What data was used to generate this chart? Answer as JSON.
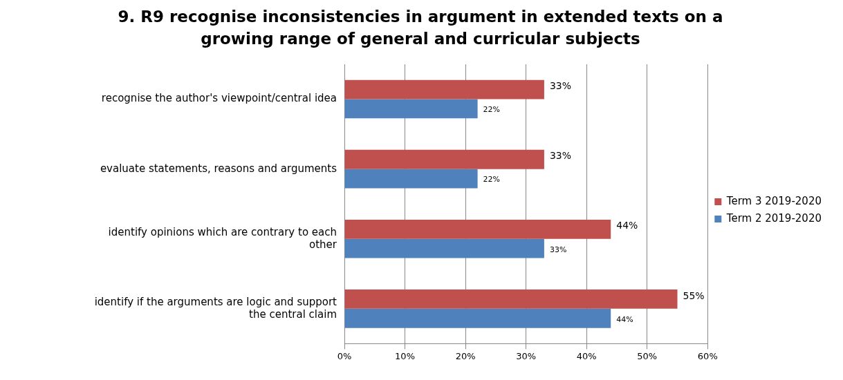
{
  "chart_data": {
    "type": "bar",
    "orientation": "horizontal",
    "title": "9. R9 recognise inconsistencies in argument in extended texts on a growing range of general and curricular subjects",
    "categories": [
      "recognise the author's viewpoint/central idea",
      "evaluate statements, reasons and arguments",
      "identify opinions which are contrary to each other",
      "identify if the arguments are logic and support the central claim"
    ],
    "series": [
      {
        "name": "Term 3 2019-2020",
        "color": "#c0504d",
        "values": [
          33,
          33,
          44,
          55
        ],
        "value_labels": [
          "33%",
          "33%",
          "44%",
          "55%"
        ]
      },
      {
        "name": "Term 2 2019-2020",
        "color": "#4f81bd",
        "values": [
          22,
          22,
          33,
          44
        ],
        "value_labels": [
          "22%",
          "22%",
          "33%",
          "44%"
        ]
      }
    ],
    "xlim": [
      0,
      60
    ],
    "xticks": [
      {
        "value": 0,
        "label": "0%"
      },
      {
        "value": 10,
        "label": "10%"
      },
      {
        "value": 20,
        "label": "20%"
      },
      {
        "value": 30,
        "label": "30%"
      },
      {
        "value": 40,
        "label": "40%"
      },
      {
        "value": 50,
        "label": "50%"
      },
      {
        "value": 60,
        "label": "60%"
      }
    ],
    "grid": "x",
    "legend": "right"
  }
}
